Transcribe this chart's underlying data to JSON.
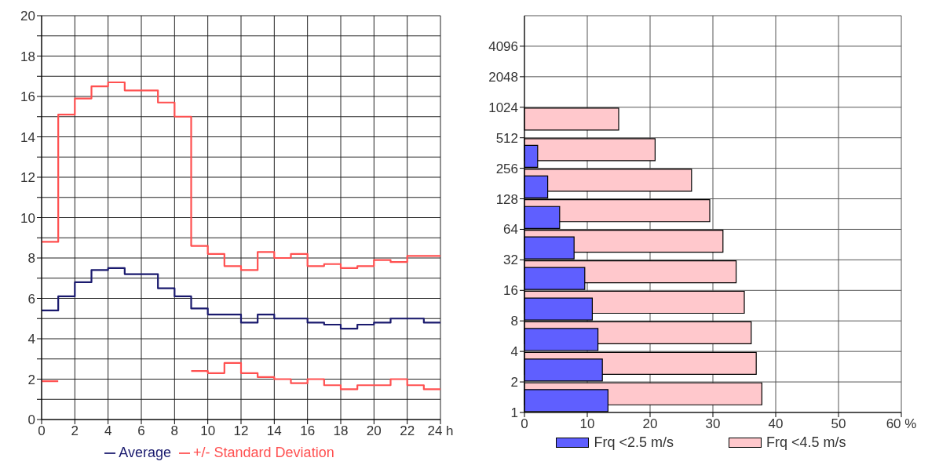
{
  "chart_data": [
    {
      "type": "step",
      "x": [
        0,
        1,
        2,
        3,
        4,
        5,
        6,
        7,
        8,
        9,
        10,
        11,
        12,
        13,
        14,
        15,
        16,
        17,
        18,
        19,
        20,
        21,
        22,
        23,
        24
      ],
      "series": [
        {
          "name": "Average",
          "color": "#1a1a6e",
          "values": [
            5.4,
            6.1,
            6.8,
            7.4,
            7.5,
            7.2,
            7.2,
            6.5,
            6.1,
            5.5,
            5.2,
            5.2,
            4.8,
            5.2,
            5.0,
            5.0,
            4.8,
            4.7,
            4.5,
            4.7,
            4.8,
            5.0,
            5.0,
            4.8,
            4.8
          ]
        },
        {
          "name": "+/- Standard Deviation",
          "color": "#ff5050",
          "values": [
            8.8,
            15.1,
            15.9,
            16.5,
            16.7,
            16.3,
            16.3,
            15.7,
            15.0,
            8.6,
            8.2,
            7.6,
            7.4,
            8.3,
            8.0,
            8.2,
            7.6,
            7.7,
            7.5,
            7.6,
            7.9,
            7.8,
            8.1,
            8.1,
            8.1
          ]
        },
        {
          "color": "#ff5050",
          "values": [
            1.9,
            null,
            null,
            null,
            null,
            null,
            null,
            null,
            null,
            2.4,
            2.3,
            2.8,
            2.3,
            2.1,
            2.0,
            1.8,
            2.0,
            1.7,
            1.5,
            1.7,
            1.7,
            2.0,
            1.7,
            1.5,
            1.5
          ]
        }
      ],
      "xlim": [
        0,
        24
      ],
      "xticks": [
        0,
        2,
        4,
        6,
        8,
        10,
        12,
        14,
        16,
        18,
        20,
        22,
        {
          "value": 24,
          "label": "24 h"
        }
      ],
      "ylim": [
        0,
        20
      ],
      "yticks": [
        0,
        {
          "value": 1,
          "label": null
        },
        2,
        {
          "value": 3,
          "label": null
        },
        4,
        {
          "value": 5,
          "label": null
        },
        6,
        {
          "value": 7,
          "label": null
        },
        8,
        {
          "value": 9,
          "label": null
        },
        10,
        {
          "value": 11,
          "label": null
        },
        12,
        {
          "value": 13,
          "label": null
        },
        14,
        {
          "value": 15,
          "label": null
        },
        16,
        {
          "value": 17,
          "label": null
        },
        18,
        {
          "value": 19,
          "label": null
        },
        20
      ],
      "grid": true,
      "legend": "bottom"
    },
    {
      "type": "histogram",
      "orientation": "horizontal",
      "log": "y",
      "bins": [
        1,
        2,
        4,
        8,
        16,
        32,
        64,
        128,
        256,
        512,
        1024
      ],
      "series": [
        {
          "name": "Frq <4.5 m/s",
          "color": "#ffc8cc",
          "values": [
            37.8,
            36.9,
            36.1,
            35.0,
            33.7,
            31.6,
            29.5,
            26.6,
            20.8,
            15.0
          ]
        },
        {
          "name": "Frq <2.5 m/s",
          "color": "#5f5fff",
          "values": [
            13.3,
            12.4,
            11.7,
            10.8,
            9.6,
            7.9,
            5.6,
            3.7,
            2.1,
            0
          ]
        }
      ],
      "xlim": [
        0,
        60
      ],
      "xticks": [
        0,
        10,
        20,
        30,
        40,
        50,
        {
          "value": 60,
          "label": "60 %"
        }
      ],
      "ylim": [
        1,
        8192
      ],
      "yticks": [
        1,
        2,
        4,
        8,
        16,
        32,
        64,
        128,
        256,
        512,
        1024,
        2048,
        4096
      ],
      "grid": true,
      "legend": "bottom"
    }
  ]
}
